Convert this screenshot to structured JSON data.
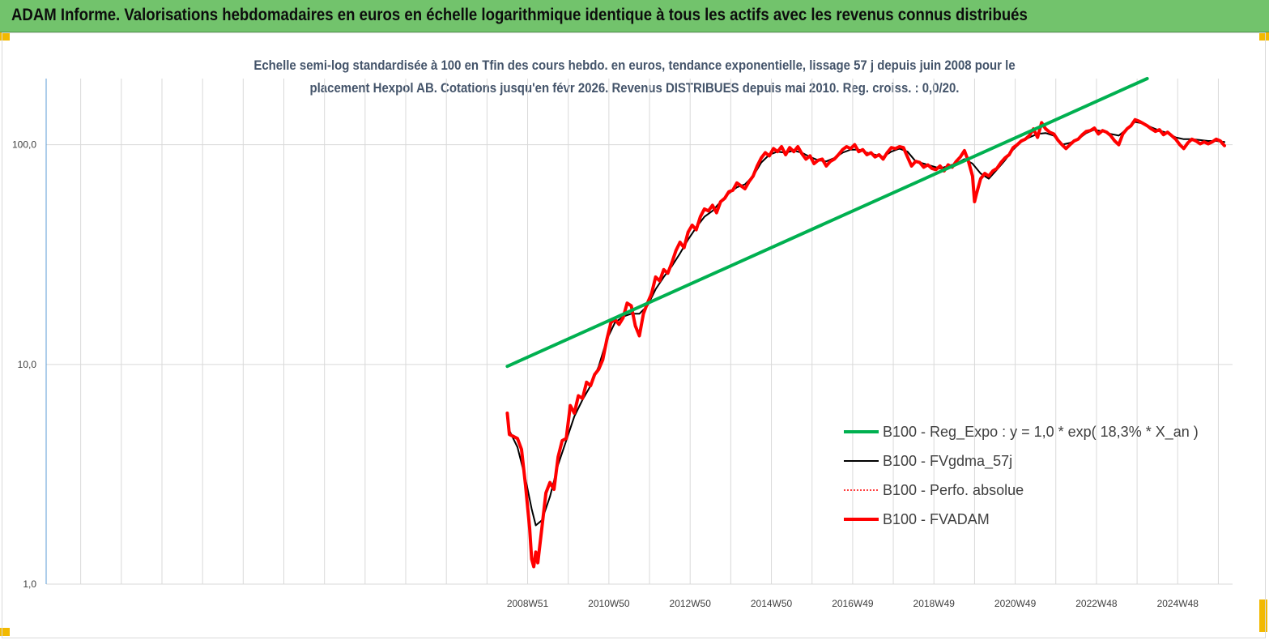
{
  "header": {
    "title": "ADAM Informe. Valorisations hebdomadaires en euros en échelle logarithmique identique à tous les actifs avec les revenus connus distribués"
  },
  "chart_data": {
    "type": "line",
    "title_line1": "Echelle semi-log standardisée à 100 en Tfin des cours hebdo. en euros, tendance exponentielle, lissage 57 j depuis juin 2008 pour le",
    "title_line2": "placement Hexpol AB. Cotations jusqu'en févr 2026. Revenus DISTRIBUES depuis mai 2010.  Reg. croiss. : 0,0/20.",
    "y_scale": "log",
    "ylim": [
      1,
      200
    ],
    "y_ticks": [
      {
        "value": 1,
        "label": "1,0"
      },
      {
        "value": 10,
        "label": "10,0"
      },
      {
        "value": 100,
        "label": "100,0"
      }
    ],
    "xlim": [
      1997.1,
      2026.3
    ],
    "x_ticks": [
      {
        "value": 2008.95,
        "label": "2008W51"
      },
      {
        "value": 2010.95,
        "label": "2010W50"
      },
      {
        "value": 2012.95,
        "label": "2012W50"
      },
      {
        "value": 2014.95,
        "label": "2014W50"
      },
      {
        "value": 2016.95,
        "label": "2016W49"
      },
      {
        "value": 2018.95,
        "label": "2018W49"
      },
      {
        "value": 2020.95,
        "label": "2020W49"
      },
      {
        "value": 2022.95,
        "label": "2022W48"
      },
      {
        "value": 2024.95,
        "label": "2024W48"
      }
    ],
    "grid_x_start": 1997.95,
    "grid_x_step": 1.0,
    "grid": true,
    "legend_position": "right",
    "series": [
      {
        "name": "B100 - Reg_Expo : y = 1,0 * exp( 18,3% *  X_an )",
        "color": "#00b050",
        "width": 4,
        "dash": "",
        "points": [
          [
            2008.45,
            9.8
          ],
          [
            2024.2,
            200
          ]
        ]
      },
      {
        "name": "B100 - FVgdma_57j",
        "color": "#000000",
        "width": 2,
        "dash": "",
        "points": [
          [
            2008.5,
            5.0
          ],
          [
            2008.7,
            4.2
          ],
          [
            2008.9,
            3.0
          ],
          [
            2009.05,
            2.2
          ],
          [
            2009.15,
            1.85
          ],
          [
            2009.3,
            1.95
          ],
          [
            2009.5,
            2.5
          ],
          [
            2009.7,
            3.5
          ],
          [
            2009.9,
            4.5
          ],
          [
            2010.1,
            5.8
          ],
          [
            2010.3,
            6.9
          ],
          [
            2010.5,
            8.0
          ],
          [
            2010.7,
            9.8
          ],
          [
            2010.9,
            13.0
          ],
          [
            2011.1,
            15.5
          ],
          [
            2011.3,
            16.5
          ],
          [
            2011.5,
            17.0
          ],
          [
            2011.7,
            17.0
          ],
          [
            2011.9,
            18.5
          ],
          [
            2012.1,
            22.0
          ],
          [
            2012.3,
            25.0
          ],
          [
            2012.5,
            28.0
          ],
          [
            2012.7,
            32.0
          ],
          [
            2012.9,
            37.0
          ],
          [
            2013.1,
            42.0
          ],
          [
            2013.3,
            47.0
          ],
          [
            2013.5,
            50.0
          ],
          [
            2013.7,
            55.0
          ],
          [
            2013.9,
            60.0
          ],
          [
            2014.1,
            64.0
          ],
          [
            2014.3,
            66.0
          ],
          [
            2014.5,
            72.0
          ],
          [
            2014.7,
            83.0
          ],
          [
            2014.9,
            90.0
          ],
          [
            2015.1,
            93.0
          ],
          [
            2015.3,
            92.0
          ],
          [
            2015.5,
            94.0
          ],
          [
            2015.7,
            92.0
          ],
          [
            2015.9,
            88.0
          ],
          [
            2016.1,
            85.0
          ],
          [
            2016.3,
            84.0
          ],
          [
            2016.5,
            87.0
          ],
          [
            2016.7,
            92.0
          ],
          [
            2016.9,
            95.0
          ],
          [
            2017.1,
            95.0
          ],
          [
            2017.3,
            92.0
          ],
          [
            2017.5,
            90.0
          ],
          [
            2017.7,
            88.0
          ],
          [
            2017.9,
            93.0
          ],
          [
            2018.1,
            96.0
          ],
          [
            2018.3,
            93.0
          ],
          [
            2018.5,
            84.0
          ],
          [
            2018.7,
            82.0
          ],
          [
            2018.9,
            80.0
          ],
          [
            2019.1,
            78.0
          ],
          [
            2019.3,
            80.0
          ],
          [
            2019.5,
            82.0
          ],
          [
            2019.7,
            86.0
          ],
          [
            2019.9,
            82.0
          ],
          [
            2020.1,
            74.0
          ],
          [
            2020.3,
            70.0
          ],
          [
            2020.5,
            77.0
          ],
          [
            2020.7,
            85.0
          ],
          [
            2020.9,
            95.0
          ],
          [
            2021.1,
            103.0
          ],
          [
            2021.3,
            108.0
          ],
          [
            2021.5,
            112.0
          ],
          [
            2021.7,
            113.0
          ],
          [
            2021.9,
            110.0
          ],
          [
            2022.1,
            100.0
          ],
          [
            2022.3,
            102.0
          ],
          [
            2022.5,
            106.0
          ],
          [
            2022.7,
            113.0
          ],
          [
            2022.9,
            117.0
          ],
          [
            2023.1,
            115.0
          ],
          [
            2023.3,
            112.0
          ],
          [
            2023.5,
            110.0
          ],
          [
            2023.7,
            118.0
          ],
          [
            2023.9,
            127.0
          ],
          [
            2024.1,
            125.0
          ],
          [
            2024.3,
            120.0
          ],
          [
            2024.5,
            116.0
          ],
          [
            2024.7,
            113.0
          ],
          [
            2024.9,
            108.0
          ],
          [
            2025.1,
            106.0
          ],
          [
            2025.3,
            106.0
          ],
          [
            2025.5,
            105.0
          ],
          [
            2025.7,
            104.0
          ],
          [
            2025.9,
            104.0
          ],
          [
            2026.1,
            103.0
          ]
        ]
      },
      {
        "name": "B100 - Perfo. absolue",
        "color": "#ff0000",
        "width": 1.5,
        "dash": "2,2",
        "points": []
      },
      {
        "name": "B100 - FVADAM",
        "color": "#ff0000",
        "width": 4,
        "dash": "",
        "points": [
          [
            2008.45,
            6.0
          ],
          [
            2008.5,
            4.8
          ],
          [
            2008.6,
            4.7
          ],
          [
            2008.7,
            4.6
          ],
          [
            2008.8,
            4.1
          ],
          [
            2008.9,
            2.8
          ],
          [
            2009.0,
            1.8
          ],
          [
            2009.05,
            1.3
          ],
          [
            2009.1,
            1.2
          ],
          [
            2009.15,
            1.4
          ],
          [
            2009.2,
            1.25
          ],
          [
            2009.3,
            1.8
          ],
          [
            2009.4,
            2.6
          ],
          [
            2009.5,
            2.9
          ],
          [
            2009.6,
            2.7
          ],
          [
            2009.7,
            3.8
          ],
          [
            2009.8,
            4.5
          ],
          [
            2009.9,
            4.6
          ],
          [
            2010.0,
            6.5
          ],
          [
            2010.1,
            6.0
          ],
          [
            2010.2,
            7.2
          ],
          [
            2010.3,
            7.0
          ],
          [
            2010.4,
            8.3
          ],
          [
            2010.5,
            8.0
          ],
          [
            2010.6,
            9.0
          ],
          [
            2010.7,
            9.5
          ],
          [
            2010.8,
            10.5
          ],
          [
            2010.9,
            13.0
          ],
          [
            2011.0,
            15.5
          ],
          [
            2011.1,
            16.0
          ],
          [
            2011.2,
            15.2
          ],
          [
            2011.3,
            16.3
          ],
          [
            2011.4,
            19.0
          ],
          [
            2011.5,
            18.5
          ],
          [
            2011.6,
            15.0
          ],
          [
            2011.7,
            13.5
          ],
          [
            2011.8,
            17.0
          ],
          [
            2011.9,
            19.0
          ],
          [
            2012.0,
            21.0
          ],
          [
            2012.1,
            25.0
          ],
          [
            2012.2,
            24.0
          ],
          [
            2012.3,
            27.0
          ],
          [
            2012.4,
            26.0
          ],
          [
            2012.5,
            29.0
          ],
          [
            2012.6,
            33.0
          ],
          [
            2012.7,
            36.0
          ],
          [
            2012.8,
            34.0
          ],
          [
            2012.9,
            40.0
          ],
          [
            2013.0,
            43.0
          ],
          [
            2013.1,
            41.0
          ],
          [
            2013.2,
            47.0
          ],
          [
            2013.3,
            51.0
          ],
          [
            2013.4,
            50.0
          ],
          [
            2013.5,
            53.0
          ],
          [
            2013.6,
            49.0
          ],
          [
            2013.7,
            55.0
          ],
          [
            2013.8,
            57.0
          ],
          [
            2013.9,
            61.0
          ],
          [
            2014.0,
            62.0
          ],
          [
            2014.1,
            67.0
          ],
          [
            2014.2,
            65.0
          ],
          [
            2014.3,
            63.0
          ],
          [
            2014.4,
            68.0
          ],
          [
            2014.5,
            72.0
          ],
          [
            2014.6,
            80.0
          ],
          [
            2014.7,
            87.0
          ],
          [
            2014.8,
            92.0
          ],
          [
            2014.9,
            89.0
          ],
          [
            2015.0,
            96.0
          ],
          [
            2015.1,
            93.0
          ],
          [
            2015.2,
            98.0
          ],
          [
            2015.3,
            90.0
          ],
          [
            2015.4,
            97.0
          ],
          [
            2015.5,
            93.0
          ],
          [
            2015.6,
            98.0
          ],
          [
            2015.7,
            91.0
          ],
          [
            2015.8,
            86.0
          ],
          [
            2015.9,
            89.0
          ],
          [
            2016.0,
            82.0
          ],
          [
            2016.1,
            85.0
          ],
          [
            2016.2,
            86.0
          ],
          [
            2016.3,
            80.0
          ],
          [
            2016.4,
            84.0
          ],
          [
            2016.5,
            86.0
          ],
          [
            2016.6,
            90.0
          ],
          [
            2016.7,
            95.0
          ],
          [
            2016.8,
            98.0
          ],
          [
            2016.9,
            96.0
          ],
          [
            2017.0,
            100.0
          ],
          [
            2017.1,
            93.0
          ],
          [
            2017.2,
            95.0
          ],
          [
            2017.3,
            90.0
          ],
          [
            2017.4,
            92.0
          ],
          [
            2017.5,
            88.0
          ],
          [
            2017.6,
            90.0
          ],
          [
            2017.7,
            86.0
          ],
          [
            2017.8,
            92.0
          ],
          [
            2017.9,
            97.0
          ],
          [
            2018.0,
            96.0
          ],
          [
            2018.1,
            98.0
          ],
          [
            2018.2,
            97.0
          ],
          [
            2018.3,
            88.0
          ],
          [
            2018.4,
            80.0
          ],
          [
            2018.5,
            84.0
          ],
          [
            2018.6,
            83.0
          ],
          [
            2018.7,
            79.0
          ],
          [
            2018.8,
            81.0
          ],
          [
            2018.9,
            78.0
          ],
          [
            2019.0,
            77.0
          ],
          [
            2019.1,
            80.0
          ],
          [
            2019.2,
            76.0
          ],
          [
            2019.3,
            81.0
          ],
          [
            2019.4,
            79.0
          ],
          [
            2019.5,
            84.0
          ],
          [
            2019.6,
            88.0
          ],
          [
            2019.7,
            94.0
          ],
          [
            2019.8,
            84.0
          ],
          [
            2019.9,
            72.0
          ],
          [
            2019.95,
            55.0
          ],
          [
            2020.0,
            60.0
          ],
          [
            2020.1,
            70.0
          ],
          [
            2020.2,
            74.0
          ],
          [
            2020.3,
            72.0
          ],
          [
            2020.4,
            76.0
          ],
          [
            2020.5,
            78.0
          ],
          [
            2020.6,
            83.0
          ],
          [
            2020.7,
            87.0
          ],
          [
            2020.8,
            90.0
          ],
          [
            2020.9,
            97.0
          ],
          [
            2021.0,
            100.0
          ],
          [
            2021.1,
            104.0
          ],
          [
            2021.2,
            106.0
          ],
          [
            2021.3,
            110.0
          ],
          [
            2021.4,
            118.0
          ],
          [
            2021.5,
            108.0
          ],
          [
            2021.6,
            126.0
          ],
          [
            2021.7,
            118.0
          ],
          [
            2021.8,
            114.0
          ],
          [
            2021.9,
            112.0
          ],
          [
            2022.0,
            105.0
          ],
          [
            2022.1,
            100.0
          ],
          [
            2022.2,
            96.0
          ],
          [
            2022.3,
            100.0
          ],
          [
            2022.4,
            104.0
          ],
          [
            2022.5,
            106.0
          ],
          [
            2022.6,
            111.0
          ],
          [
            2022.7,
            115.0
          ],
          [
            2022.8,
            116.0
          ],
          [
            2022.9,
            119.0
          ],
          [
            2023.0,
            112.0
          ],
          [
            2023.1,
            116.0
          ],
          [
            2023.2,
            114.0
          ],
          [
            2023.3,
            110.0
          ],
          [
            2023.4,
            104.0
          ],
          [
            2023.5,
            100.0
          ],
          [
            2023.6,
            112.0
          ],
          [
            2023.7,
            118.0
          ],
          [
            2023.8,
            122.0
          ],
          [
            2023.9,
            130.0
          ],
          [
            2024.0,
            128.0
          ],
          [
            2024.1,
            125.0
          ],
          [
            2024.2,
            122.0
          ],
          [
            2024.3,
            118.0
          ],
          [
            2024.4,
            115.0
          ],
          [
            2024.5,
            117.0
          ],
          [
            2024.6,
            111.0
          ],
          [
            2024.7,
            114.0
          ],
          [
            2024.8,
            110.0
          ],
          [
            2024.9,
            106.0
          ],
          [
            2025.0,
            100.0
          ],
          [
            2025.1,
            96.0
          ],
          [
            2025.2,
            102.0
          ],
          [
            2025.3,
            106.0
          ],
          [
            2025.4,
            104.0
          ],
          [
            2025.5,
            101.0
          ],
          [
            2025.6,
            103.0
          ],
          [
            2025.7,
            101.0
          ],
          [
            2025.8,
            103.0
          ],
          [
            2025.9,
            106.0
          ],
          [
            2026.0,
            104.0
          ],
          [
            2026.1,
            99.0
          ]
        ]
      }
    ]
  }
}
